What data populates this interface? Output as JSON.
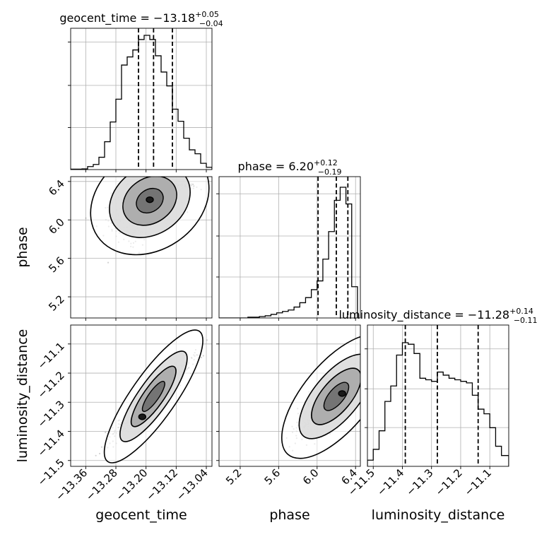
{
  "chart_data": {
    "type": "corner",
    "parameters": [
      "geocent_time",
      "phase",
      "luminosity_distance"
    ],
    "axis_labels": {
      "geocent_time": "geocent_time",
      "phase": "phase",
      "luminosity_distance": "luminosity_distance"
    },
    "titles": [
      {
        "name": "geocent_time",
        "prefix": "geocent_time = ",
        "value": "−13.18",
        "plus": "+0.05",
        "minus": "−0.04"
      },
      {
        "name": "phase",
        "prefix": "phase = ",
        "value": "6.20",
        "plus": "+0.12",
        "minus": "−0.19"
      },
      {
        "name": "luminosity_distance",
        "prefix": "luminosity_distance = ",
        "value": "−11.28",
        "plus": "+0.14",
        "minus": "−0.11"
      }
    ],
    "ranges": {
      "geocent_time": [
        -13.4,
        -13.025
      ],
      "phase": [
        4.98,
        6.45
      ],
      "luminosity_distance": [
        -11.52,
        -11.035
      ]
    },
    "ticks": {
      "geocent_time": {
        "values": [
          -13.36,
          -13.28,
          -13.2,
          -13.12,
          -13.04
        ],
        "labels": [
          "−13.36",
          "−13.28",
          "−13.20",
          "−13.12",
          "−13.04"
        ]
      },
      "phase": {
        "values": [
          5.2,
          5.6,
          6.0,
          6.4
        ],
        "labels": [
          "5.2",
          "5.6",
          "6.0",
          "6.4"
        ]
      },
      "luminosity_distance": {
        "values": [
          -11.5,
          -11.4,
          -11.3,
          -11.2,
          -11.1
        ],
        "labels": [
          "−11.5",
          "−11.4",
          "−11.3",
          "−11.2",
          "−11.1"
        ]
      }
    },
    "quantiles": {
      "geocent_time": [
        -13.22,
        -13.18,
        -13.13
      ],
      "phase": [
        6.01,
        6.2,
        6.32
      ],
      "luminosity_distance": [
        -11.39,
        -11.28,
        -11.14
      ]
    },
    "histograms": {
      "geocent_time": {
        "edges": [
          -13.4,
          -13.385,
          -13.37,
          -13.355,
          -13.34,
          -13.325,
          -13.31,
          -13.295,
          -13.28,
          -13.265,
          -13.25,
          -13.235,
          -13.22,
          -13.205,
          -13.19,
          -13.175,
          -13.16,
          -13.145,
          -13.13,
          -13.115,
          -13.1,
          -13.085,
          -13.07,
          -13.055,
          -13.04,
          -13.025
        ],
        "counts": [
          0.2,
          0.2,
          0.3,
          1.3,
          2.2,
          5.3,
          12.0,
          20.5,
          30.3,
          45.0,
          48.5,
          51.5,
          56.0,
          57.8,
          56.0,
          49.0,
          42.0,
          36.0,
          26.0,
          20.8,
          13.5,
          8.5,
          6.8,
          2.7,
          1.0
        ]
      },
      "phase": {
        "edges": [
          4.98,
          5.04,
          5.1,
          5.16,
          5.22,
          5.28,
          5.34,
          5.4,
          5.46,
          5.52,
          5.58,
          5.64,
          5.7,
          5.76,
          5.82,
          5.88,
          5.94,
          6.0,
          6.06,
          6.12,
          6.18,
          6.24,
          6.3,
          6.36,
          6.42
        ],
        "counts": [
          0,
          0,
          0,
          0,
          0,
          0.7,
          0.7,
          1.3,
          2,
          3.3,
          4.7,
          6,
          7.3,
          10,
          14,
          18.7,
          26,
          34,
          54,
          79.3,
          108,
          120,
          104.7,
          28.7
        ]
      },
      "luminosity_distance": {
        "edges": [
          -11.52,
          -11.5,
          -11.48,
          -11.46,
          -11.44,
          -11.42,
          -11.4,
          -11.38,
          -11.36,
          -11.34,
          -11.32,
          -11.3,
          -11.28,
          -11.26,
          -11.24,
          -11.22,
          -11.2,
          -11.18,
          -11.16,
          -11.14,
          -11.12,
          -11.1,
          -11.08,
          -11.06,
          -11.035
        ],
        "counts": [
          2.0,
          5.5,
          11.5,
          21.0,
          26.0,
          36.0,
          40.0,
          39.5,
          36.5,
          28.5,
          28.0,
          27.5,
          30.5,
          29.5,
          28.5,
          28.0,
          27.5,
          27.0,
          23.0,
          18.5,
          17.0,
          12.5,
          6.5,
          3.5
        ]
      }
    },
    "pairs": [
      {
        "x": "geocent_time",
        "y": "phase",
        "corr": 0.55,
        "center": {
          "x": -13.19,
          "y": 6.2
        },
        "peak": {
          "x": -13.19,
          "y": 6.21
        }
      },
      {
        "x": "geocent_time",
        "y": "luminosity_distance",
        "corr": 0.95,
        "center": {
          "x": -13.18,
          "y": -11.28
        },
        "peak": {
          "x": -13.21,
          "y": -11.35
        }
      },
      {
        "x": "phase",
        "y": "luminosity_distance",
        "corr": 0.85,
        "center": {
          "x": 6.2,
          "y": -11.28
        },
        "peak": {
          "x": 6.26,
          "y": -11.27
        }
      }
    ],
    "colors": {
      "histogram": "#000000",
      "quantile_line": "#000000",
      "scatter": "#7f7f7f",
      "grid": "#b0b0b0"
    },
    "grid": true
  }
}
